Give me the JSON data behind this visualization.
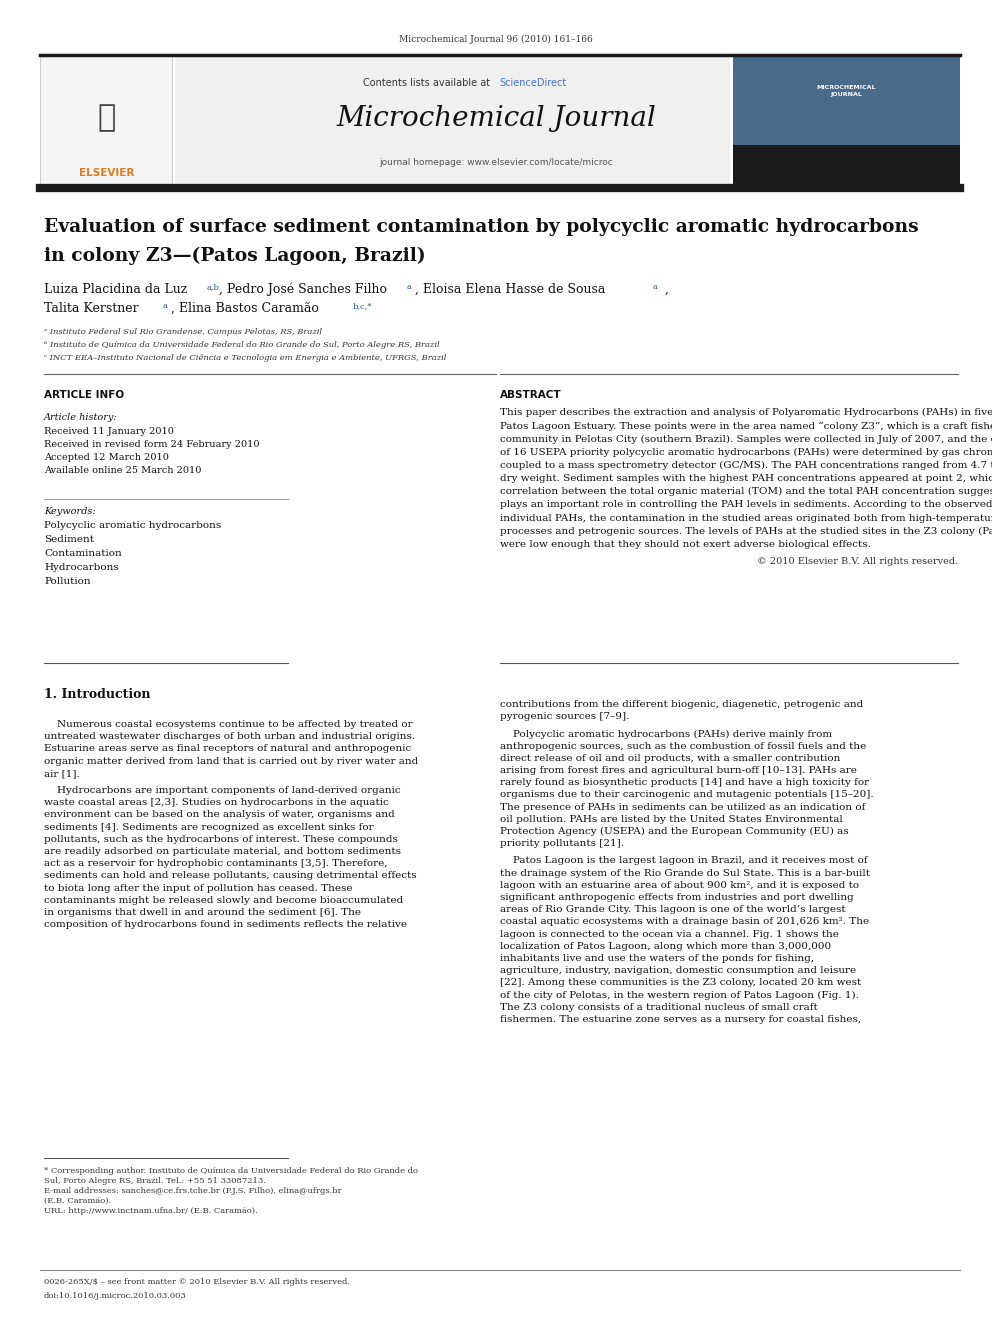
{
  "page_width": 9.92,
  "page_height": 13.23,
  "bg_color": "#ffffff",
  "header_journal_ref": "Microchemical Journal 96 (2010) 161–166",
  "journal_name": "Microchemical Journal",
  "contents_text": "Contents lists available at ScienceDirect",
  "sciencedirect_color": "#4472c4",
  "journal_homepage": "journal homepage: www.elsevier.com/locate/microc",
  "header_bar_color": "#2c2c2c",
  "article_title_line1": "Evaluation of surface sediment contamination by polycyclic aromatic hydrocarbons",
  "article_title_line2": "in colony Z3—(Patos Lagoon, Brazil)",
  "affil_a": "ᵃ Instituto Federal Sul Rio Grandense, Campus Pelotas, RS, Brazil",
  "affil_b": "ᵇ Instituto de Química da Universidade Federal do Rio Grande do Sul, Porto Alegre RS, Brazil",
  "affil_c": "ᶜ INCT EEA–Instituto Nacional de Ciência e Tecnologia em Energia e Ambiente, UFRGS, Brazil",
  "article_info_title": "ARTICLE INFO",
  "article_history_label": "Article history:",
  "received1": "Received 11 January 2010",
  "received2": "Received in revised form 24 February 2010",
  "accepted": "Accepted 12 March 2010",
  "available": "Available online 25 March 2010",
  "keywords_label": "Keywords:",
  "kw1": "Polycyclic aromatic hydrocarbons",
  "kw2": "Sediment",
  "kw3": "Contamination",
  "kw4": "Hydrocarbons",
  "kw5": "Pollution",
  "abstract_title": "ABSTRACT",
  "abstract_text": "This paper describes the extraction and analysis of Polyaromatic Hydrocarbons (PAHs) in five points of the\nPatos Lagoon Estuary. These points were in the area named “colony Z3”, which is a craft fishermen\ncommunity in Pelotas City (southern Brazil). Samples were collected in July of 2007, and the concentrations\nof 16 USEPA priority polycyclic aromatic hydrocarbons (PAHs) were determined by gas chromatography\ncoupled to a mass spectrometry detector (GC/MS). The PAH concentrations ranged from 4.7 to 112.5 μg kg⁻¹\ndry weight. Sediment samples with the highest PAH concentrations appeared at point 2, which is a pier. The\ncorrelation between the total organic material (TOM) and the total PAH concentration suggests that TOM\nplays an important role in controlling the PAH levels in sediments. According to the observed ratios of\nindividual PAHs, the contamination in the studied areas originated both from high-temperature pyrolytic\nprocesses and petrogenic sources. The levels of PAHs at the studied sites in the Z3 colony (Patos Lagoon)\nwere low enough that they should not exert adverse biological effects.",
  "copyright": "© 2010 Elsevier B.V. All rights reserved.",
  "intro_title": "1. Introduction",
  "intro_col1_p1": "    Numerous coastal ecosystems continue to be affected by treated or\nuntreated wastewater discharges of both urban and industrial origins.\nEstuarine areas serve as final receptors of natural and anthropogenic\norganic matter derived from land that is carried out by river water and\nair [1].",
  "intro_col1_p2": "    Hydrocarbons are important components of land-derived organic\nwaste coastal areas [2,3]. Studies on hydrocarbons in the aquatic\nenvironment can be based on the analysis of water, organisms and\nsediments [4]. Sediments are recognized as excellent sinks for\npollutants, such as the hydrocarbons of interest. These compounds\nare readily adsorbed on particulate material, and bottom sediments\nact as a reservoir for hydrophobic contaminants [3,5]. Therefore,\nsediments can hold and release pollutants, causing detrimental effects\nto biota long after the input of pollution has ceased. These\ncontaminants might be released slowly and become bioaccumulated\nin organisms that dwell in and around the sediment [6]. The\ncomposition of hydrocarbons found in sediments reflects the relative",
  "intro_col2_p1": "contributions from the different biogenic, diagenetic, petrogenic and\npyrogenic sources [7–9].",
  "intro_col2_p2": "    Polycyclic aromatic hydrocarbons (PAHs) derive mainly from\nanthropogenic sources, such as the combustion of fossil fuels and the\ndirect release of oil and oil products, with a smaller contribution\narising from forest fires and agricultural burn-off [10–13]. PAHs are\nrarely found as biosynthetic products [14] and have a high toxicity for\norganisms due to their carcinogenic and mutagenic potentials [15–20].\nThe presence of PAHs in sediments can be utilized as an indication of\noil pollution. PAHs are listed by the United States Environmental\nProtection Agency (USEPA) and the European Community (EU) as\npriority pollutants [21].",
  "intro_col2_p3": "    Patos Lagoon is the largest lagoon in Brazil, and it receives most of\nthe drainage system of the Rio Grande do Sul State. This is a bar-built\nlagoon with an estuarine area of about 900 km², and it is exposed to\nsignificant anthropogenic effects from industries and port dwelling\nareas of Rio Grande City. This lagoon is one of the world’s largest\ncoastal aquatic ecosystems with a drainage basin of 201,626 km². The\nlagoon is connected to the ocean via a channel. Fig. 1 shows the\nlocalization of Patos Lagoon, along which more than 3,000,000\ninhabitants live and use the waters of the ponds for fishing,\nagriculture, industry, navigation, domestic consumption and leisure\n[22]. Among these communities is the Z3 colony, located 20 km west\nof the city of Pelotas, in the western region of Patos Lagoon (Fig. 1).\nThe Z3 colony consists of a traditional nucleus of small craft\nfishermen. The estuarine zone serves as a nursery for coastal fishes,",
  "footnote1": "* Corresponding author. Instituto de Química da Universidade Federal do Rio Grande do",
  "footnote1b": "Sul, Porto Alegre RS, Brazil. Tel.: +55 51 33087213.",
  "footnote2a": "E-mail addresses: sanches@ce.frs.tche.br (P.J.S. Filho), elina@ufrgs.br",
  "footnote2b": "(E.B. Caramão).",
  "footnote3": "URL: http://www.inctnam.ufna.br/ (E.B. Caramão).",
  "bottom_left": "0026-265X/$ – see front matter © 2010 Elsevier B.V. All rights reserved.",
  "bottom_doi": "doi:10.1016/j.microc.2010.03.003",
  "elsevier_color": "#e07b20",
  "link_color": "#2255aa"
}
